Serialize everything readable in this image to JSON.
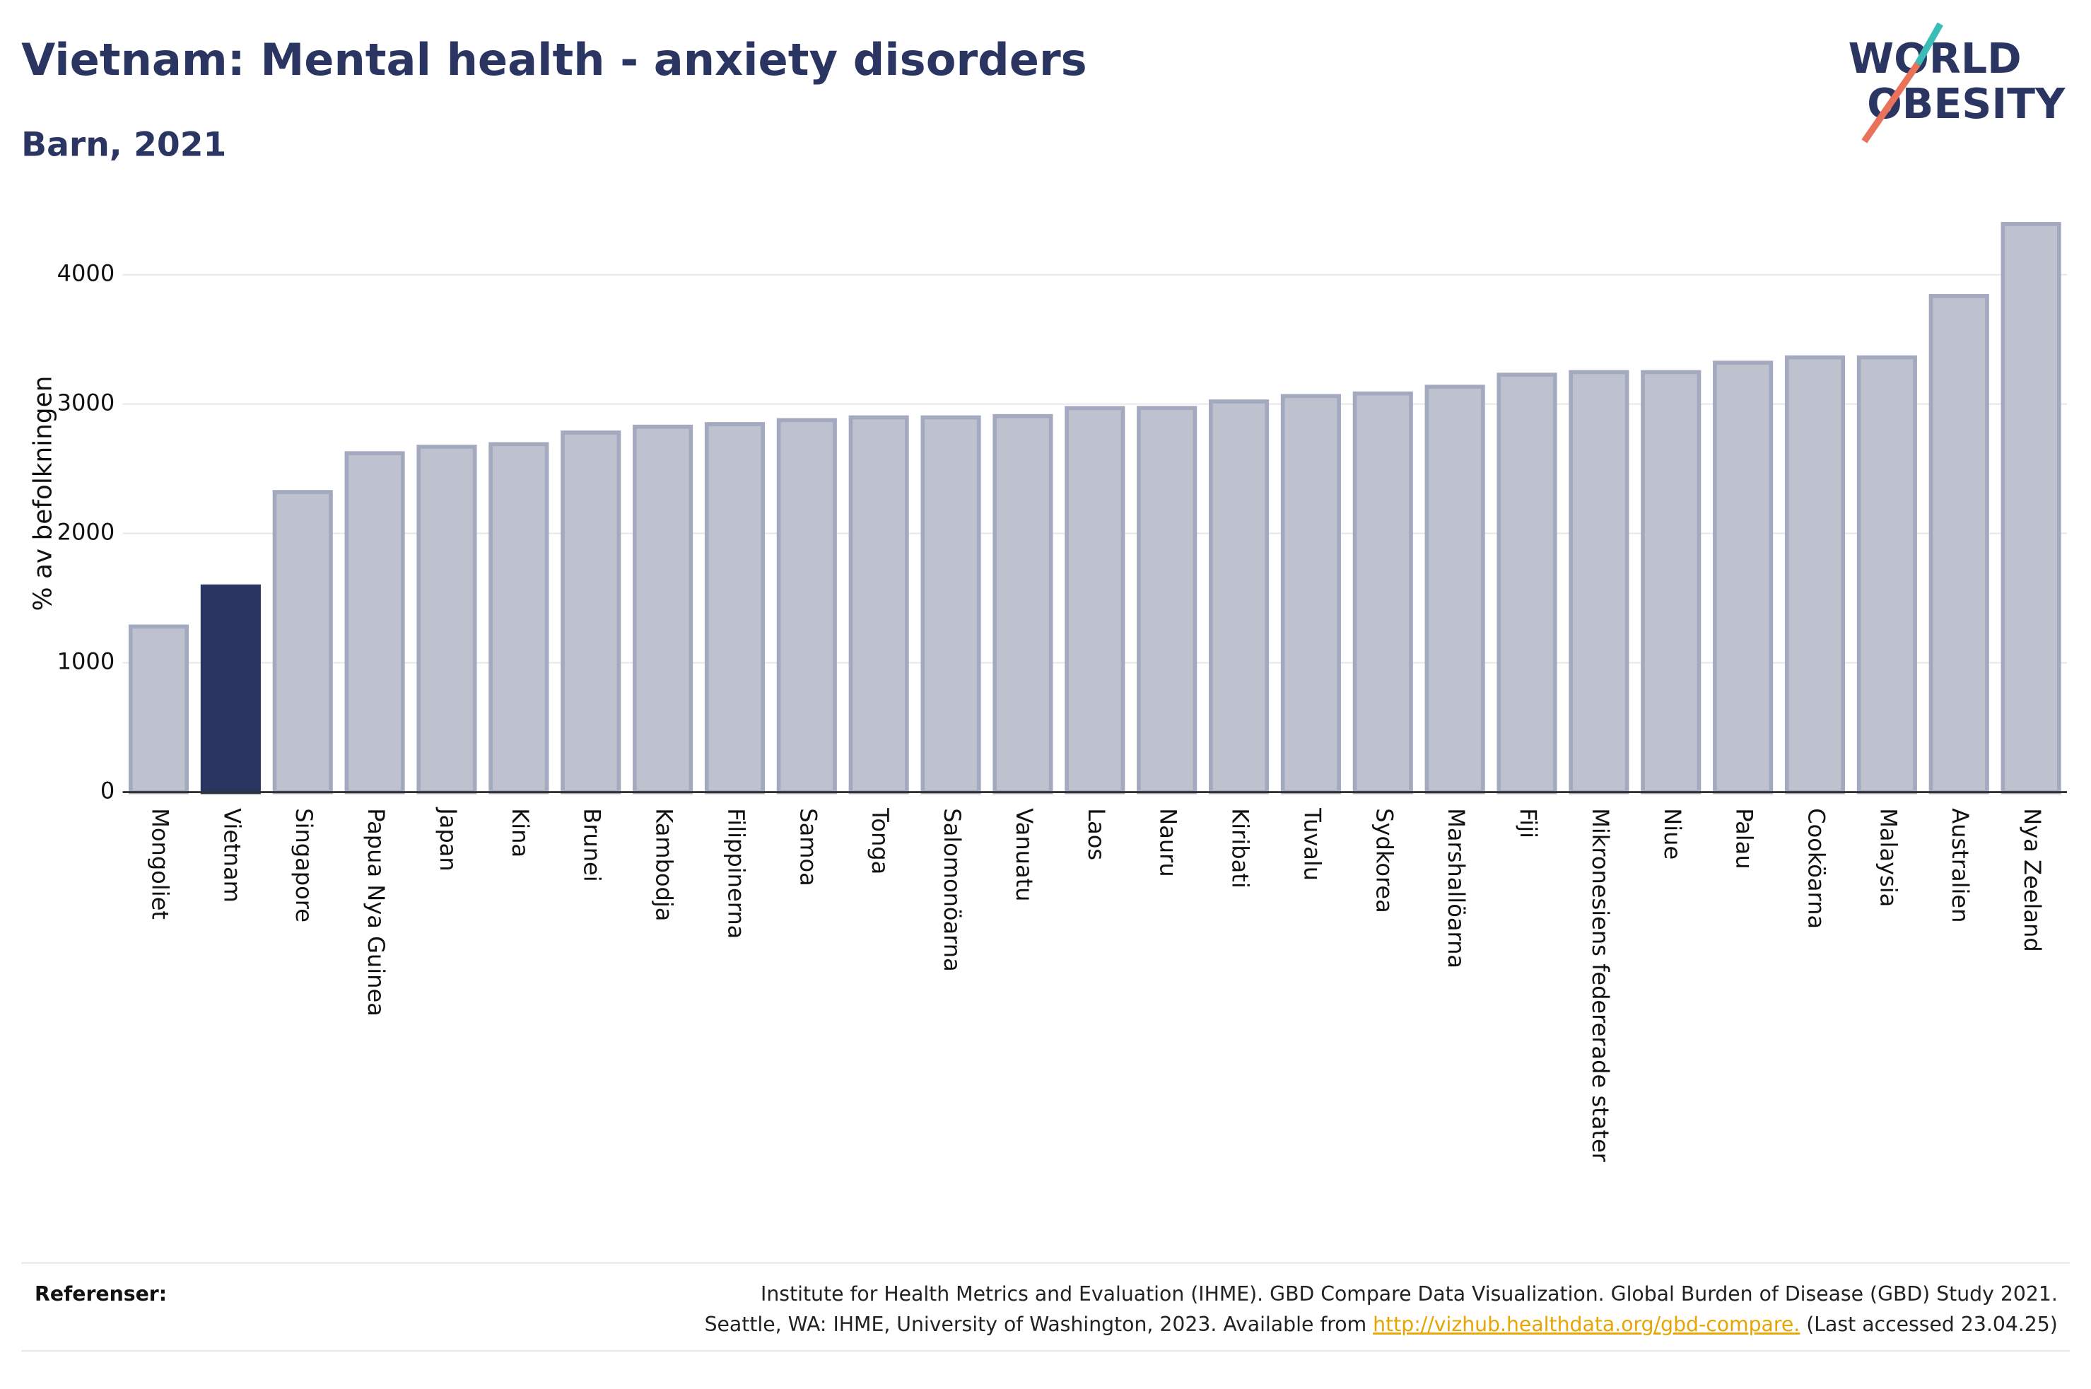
{
  "chart_data": {
    "type": "bar",
    "title": "Vietnam: Mental health - anxiety disorders",
    "subtitle": "Barn, 2021",
    "y_label": "% av befolkningen",
    "categories": [
      "Mongoliet",
      "Vietnam",
      "Singapore",
      "Papua Nya Guinea",
      "Japan",
      "Kina",
      "Brunei",
      "Kambodja",
      "Filippinerna",
      "Samoa",
      "Tonga",
      "Salomonöarna",
      "Vanuatu",
      "Laos",
      "Nauru",
      "Kiribati",
      "Tuvalu",
      "Sydkorea",
      "Marshallöarna",
      "Fiji",
      "Mikronesiens federerade stater",
      "Niue",
      "Palau",
      "Cooköarna",
      "Malaysia",
      "Australien",
      "Nya Zeeland"
    ],
    "values": [
      1280,
      1590,
      2320,
      2620,
      2670,
      2690,
      2780,
      2825,
      2845,
      2876,
      2897,
      2897,
      2907,
      2969,
      2970,
      3020,
      3062,
      3082,
      3134,
      3227,
      3247,
      3247,
      3320,
      3361,
      3361,
      3835,
      4392
    ],
    "color": "#bec2cf",
    "highlight": "Vietnam",
    "highlight_color": "#2b3561",
    "ylim": [
      0,
      4500
    ],
    "yticks": [
      0,
      1000,
      2000,
      3000,
      4000
    ],
    "grid": true
  },
  "logo": [
    "WORLD",
    "OBESITY"
  ],
  "references": {
    "label": "Referenser:",
    "line1": "Institute for Health Metrics and Evaluation (IHME). GBD Compare Data Visualization. Global Burden of Disease (GBD) Study 2021.",
    "line2": "Seattle, WA: IHME, University of Washington, 2023. Available from ",
    "link": "http://vizhub.healthdata.org/gbd-compare.",
    "line2_end": " (Last accessed 23.04.25)"
  }
}
